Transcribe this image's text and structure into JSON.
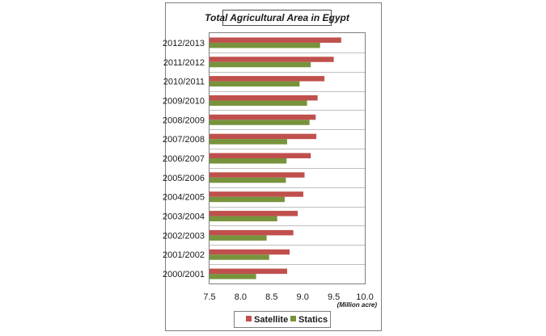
{
  "chart_data": {
    "type": "bar",
    "orientation": "horizontal",
    "title": "Total Agricultural Area in Egypt",
    "xlabel": "(Million acre)",
    "ylabel": "",
    "xlim": [
      7.5,
      10.0
    ],
    "xticks": [
      "7.5",
      "8.0",
      "8.5",
      "9.0",
      "9.5",
      "10.0"
    ],
    "grid": "horizontal",
    "legend_position": "bottom",
    "categories": [
      "2012/2013",
      "2011/2012",
      "2010/2011",
      "2009/2010",
      "2008/2009",
      "2007/2008",
      "2006/2007",
      "2005/2006",
      "2004/2005",
      "2003/2004",
      "2002/2003",
      "2001/2002",
      "2000/2001"
    ],
    "series": [
      {
        "name": "Satellite",
        "color": "#c0504d",
        "values": [
          9.62,
          9.5,
          9.35,
          9.24,
          9.21,
          9.22,
          9.13,
          9.03,
          9.01,
          8.92,
          8.85,
          8.79,
          8.75
        ]
      },
      {
        "name": "Statics",
        "color": "#77933c",
        "values": [
          9.28,
          9.13,
          8.95,
          9.07,
          9.11,
          8.75,
          8.74,
          8.73,
          8.71,
          8.59,
          8.42,
          8.46,
          8.25
        ]
      }
    ]
  }
}
